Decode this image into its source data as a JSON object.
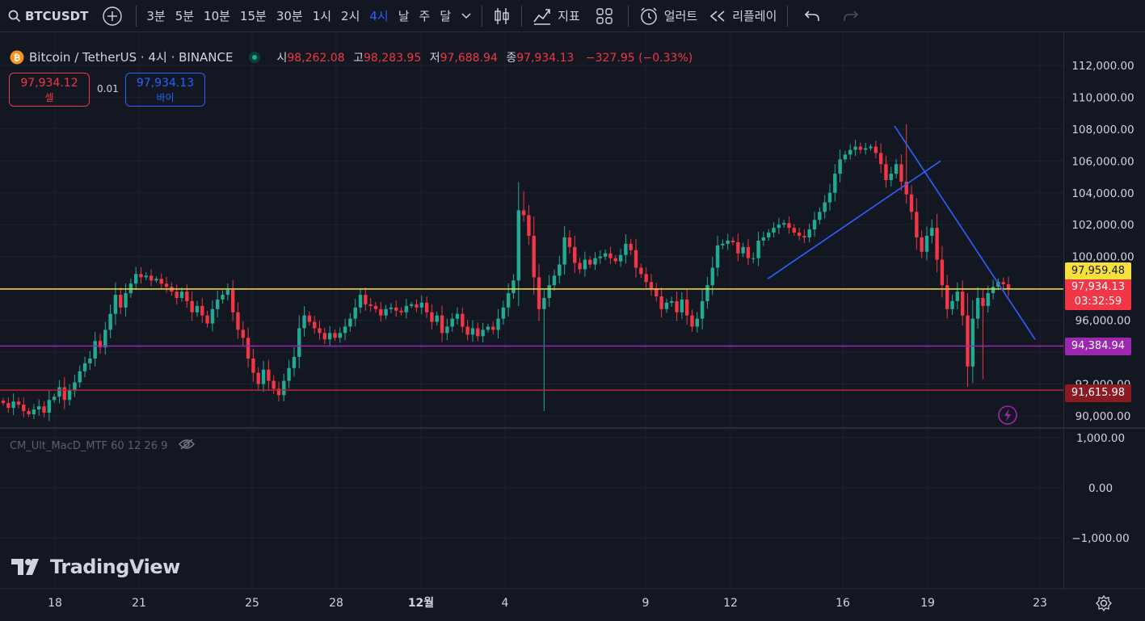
{
  "toolbar": {
    "symbol": "BTCUSDT",
    "timeframes": [
      "3분",
      "5분",
      "10분",
      "15분",
      "30분",
      "1시",
      "2시",
      "4시",
      "날",
      "주",
      "달"
    ],
    "active_timeframe": "4시",
    "indicators_label": "지표",
    "alert_label": "얼러트",
    "replay_label": "리플레이"
  },
  "legend": {
    "title": "Bitcoin / TetherUS · 4시 · BINANCE",
    "open_key": "시",
    "open": "98,262.08",
    "high_key": "고",
    "high": "98,283.95",
    "low_key": "저",
    "low": "97,688.94",
    "close_key": "종",
    "close": "97,934.13",
    "change": "−327.95 (−0.33%)"
  },
  "trade": {
    "sell_price": "97,934.12",
    "sell_label": "셀",
    "spread": "0.01",
    "buy_price": "97,934.13",
    "buy_label": "바이"
  },
  "indicator": {
    "name": "CM_Ult_MacD_MTF 60 12 26 9"
  },
  "branding": {
    "logo_text": "TradingView"
  },
  "price_axis": {
    "labels": [
      "112,000.00",
      "110,000.00",
      "108,000.00",
      "106,000.00",
      "104,000.00",
      "102,000.00",
      "100,000.00",
      "96,000.00",
      "92,000.00",
      "90,000.00"
    ],
    "macd_labels": [
      "1,000.00",
      "0.00",
      "−1,000.00"
    ]
  },
  "time_axis": {
    "labels": [
      "18",
      "21",
      "25",
      "28",
      "12월",
      "4",
      "9",
      "12",
      "16",
      "19",
      "23"
    ]
  },
  "price_tags": {
    "yellow_line": "97,959.48",
    "current": "97,934.13",
    "countdown": "03:32:59",
    "purple_line": "94,384.94",
    "red_line": "91,615.98"
  },
  "colors": {
    "up": "#22ab94",
    "down": "#f23645",
    "background": "#131722",
    "yellow_line": "#f7e03a",
    "purple_line": "#9c27b0",
    "red_line": "#b22833",
    "trendline": "#2962ff"
  },
  "chart_data": {
    "type": "candlestick",
    "symbol": "BTCUSDT",
    "ylim": [
      89500,
      113000
    ],
    "horizontal_lines": [
      97959.48,
      94384.94,
      91615.98
    ],
    "closes": [
      90800,
      90500,
      90900,
      90700,
      90300,
      90100,
      90400,
      90600,
      90200,
      91000,
      91200,
      91800,
      91000,
      91600,
      92100,
      92800,
      93300,
      93600,
      94700,
      94300,
      95400,
      96400,
      97600,
      96800,
      97700,
      98300,
      98900,
      98700,
      98800,
      98500,
      98600,
      98300,
      98100,
      97800,
      97400,
      97800,
      97200,
      96500,
      96900,
      96300,
      95800,
      96700,
      97300,
      97600,
      97900,
      96500,
      95400,
      94900,
      93600,
      92700,
      92000,
      92900,
      92200,
      91700,
      91300,
      92200,
      93000,
      93700,
      95500,
      96300,
      95900,
      95500,
      95200,
      94800,
      95200,
      94900,
      95200,
      95600,
      96100,
      96800,
      97600,
      97000,
      96900,
      96700,
      96300,
      96700,
      96800,
      96600,
      96500,
      96900,
      97000,
      96800,
      97100,
      96500,
      95900,
      96300,
      95200,
      95600,
      96100,
      96400,
      95600,
      95100,
      95500,
      95000,
      95400,
      95600,
      95400,
      96100,
      96800,
      97700,
      98500,
      102900,
      102600,
      101300,
      98700,
      96700,
      97400,
      98200,
      98800,
      99500,
      101200,
      100600,
      99600,
      99200,
      99800,
      99500,
      99900,
      100000,
      100200,
      99900,
      99700,
      100100,
      100800,
      100400,
      99300,
      98900,
      98400,
      98000,
      97500,
      96700,
      97100,
      97200,
      96500,
      97300,
      96300,
      95600,
      96100,
      97200,
      98200,
      99300,
      100700,
      100800,
      101000,
      100900,
      100200,
      100600,
      99900,
      99900,
      101000,
      101200,
      101500,
      101800,
      102000,
      102100,
      101800,
      101500,
      101300,
      101200,
      101700,
      102300,
      102800,
      103400,
      104000,
      105200,
      106100,
      106400,
      106700,
      106900,
      106700,
      106800,
      106900,
      106500,
      105800,
      104800,
      105200,
      105800,
      104700,
      103900,
      102800,
      101200,
      100300,
      101300,
      101800,
      99800,
      98200,
      96700,
      97200,
      97800,
      96300,
      93100,
      96100,
      97400,
      96900,
      97700,
      98100,
      98400,
      98262,
      97934
    ]
  }
}
